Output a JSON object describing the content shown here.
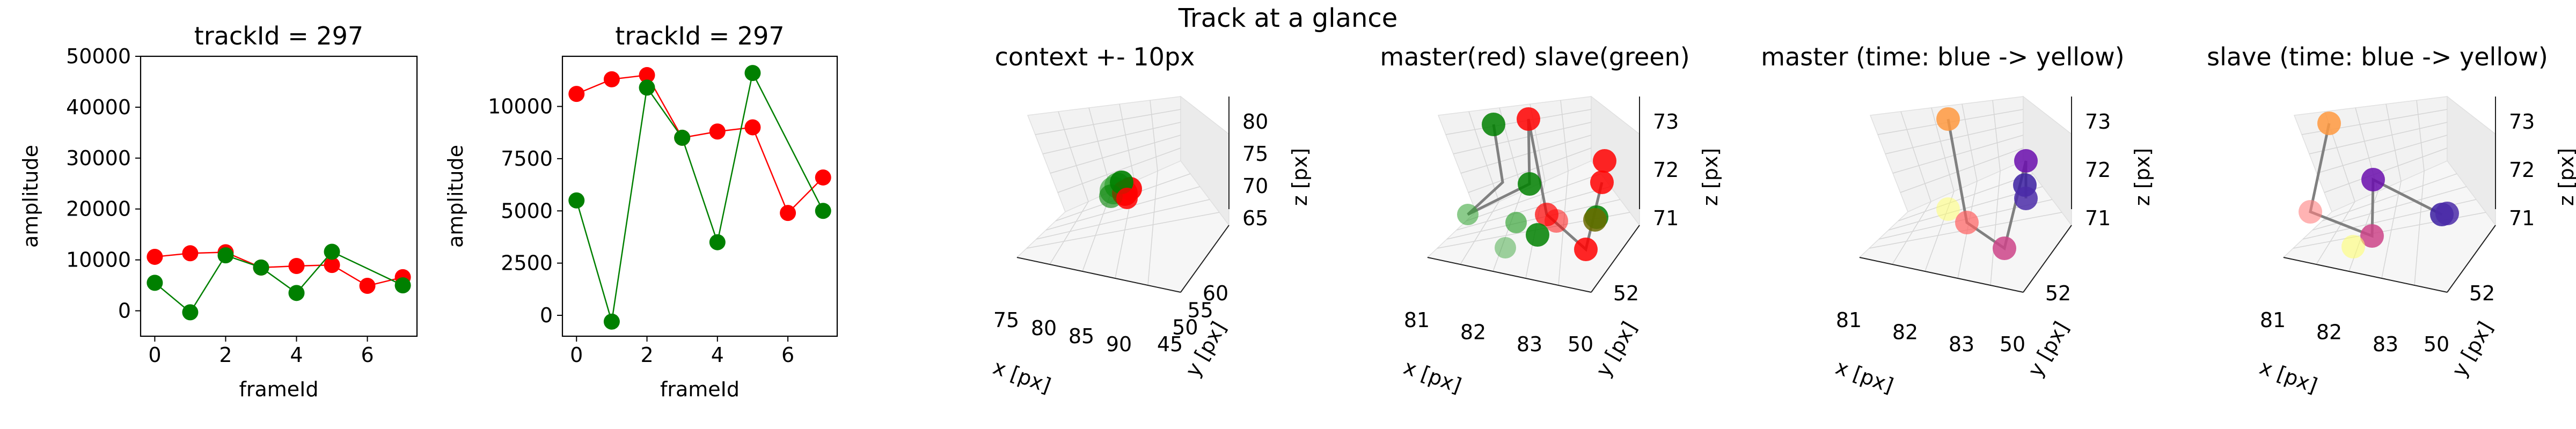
{
  "figure": {
    "suptitle": "Track at a glance"
  },
  "chart_data": [
    {
      "id": "amp1",
      "type": "line",
      "title": "trackId = 297",
      "xlabel": "frameId",
      "ylabel": "amplitude",
      "xlim": [
        -0.4,
        7.4
      ],
      "ylim": [
        -5000,
        50000
      ],
      "xticks": [
        0,
        2,
        4,
        6
      ],
      "yticks": [
        0,
        10000,
        20000,
        30000,
        40000,
        50000
      ],
      "grid": false,
      "series": [
        {
          "color": "#ff0000",
          "x": [
            0,
            1,
            2,
            3,
            4,
            5,
            6,
            7
          ],
          "values": [
            10600,
            11300,
            11500,
            8500,
            8800,
            9000,
            4900,
            6600
          ]
        },
        {
          "color": "#008000",
          "x": [
            0,
            1,
            2,
            3,
            4,
            5,
            6,
            7
          ],
          "values": [
            5500,
            -300,
            10900,
            8500,
            3500,
            11600,
            null,
            5000
          ]
        }
      ]
    },
    {
      "id": "amp2",
      "type": "line",
      "title": "trackId = 297",
      "xlabel": "frameId",
      "ylabel": "amplitude",
      "xlim": [
        -0.4,
        7.4
      ],
      "ylim": [
        -1000,
        12400
      ],
      "xticks": [
        0,
        2,
        4,
        6
      ],
      "yticks": [
        0,
        2500,
        5000,
        7500,
        10000
      ],
      "grid": false,
      "series": [
        {
          "color": "#ff0000",
          "x": [
            0,
            1,
            2,
            3,
            4,
            5,
            6,
            7
          ],
          "values": [
            10600,
            11300,
            11500,
            8500,
            8800,
            9000,
            4900,
            6600
          ]
        },
        {
          "color": "#008000",
          "x": [
            0,
            1,
            2,
            3,
            4,
            5,
            6,
            7
          ],
          "values": [
            5500,
            -300,
            10900,
            8500,
            3500,
            11600,
            null,
            5000
          ]
        }
      ]
    },
    {
      "id": "ctx",
      "type": "scatter",
      "title": "context +- 10px",
      "xlabel": "x [px]",
      "ylabel": "y [px]",
      "zlabel": "z [px]",
      "xtick_labels": [
        "75",
        "80",
        "85",
        "90"
      ],
      "ytick_labels": [
        "45",
        "50",
        "55",
        "60"
      ],
      "ztick_labels": [
        "65",
        "70",
        "75",
        "80"
      ],
      "grid": true
    },
    {
      "id": "ms",
      "type": "scatter",
      "title": "master(red) slave(green)",
      "xlabel": "x [px]",
      "ylabel": "y [px]",
      "zlabel": "z [px]",
      "xtick_labels": [
        "81",
        "82",
        "83"
      ],
      "ytick_labels": [
        "50",
        "52"
      ],
      "ztick_labels": [
        "71",
        "72",
        "73"
      ],
      "grid": true
    },
    {
      "id": "master",
      "type": "scatter",
      "title": "master (time: blue -> yellow)",
      "xlabel": "x [px]",
      "ylabel": "y [px]",
      "zlabel": "z [px]",
      "xtick_labels": [
        "81",
        "82",
        "83"
      ],
      "ytick_labels": [
        "50",
        "52"
      ],
      "ztick_labels": [
        "71",
        "72",
        "73"
      ],
      "grid": true
    },
    {
      "id": "slave",
      "type": "scatter",
      "title": "slave (time: blue -> yellow)",
      "xlabel": "x [px]",
      "ylabel": "y [px]",
      "zlabel": "z [px]",
      "xtick_labels": [
        "81",
        "82",
        "83"
      ],
      "ytick_labels": [
        "50",
        "52"
      ],
      "ztick_labels": [
        "71",
        "72",
        "73"
      ],
      "grid": true
    }
  ]
}
